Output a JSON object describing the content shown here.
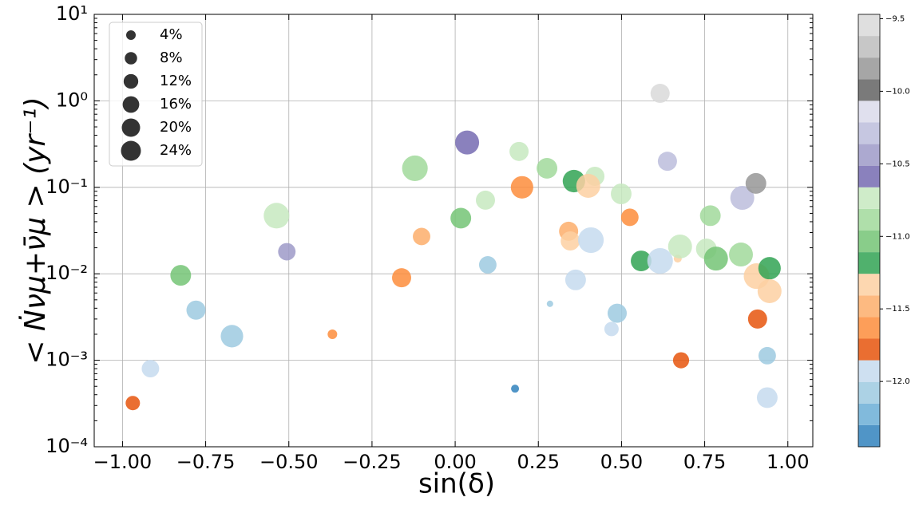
{
  "chart_data": {
    "type": "scatter",
    "x_label": "sin(δ)",
    "y_label": "< Ṅνμ+ν̄μ > (yr⁻¹)",
    "xlim": [
      -1.085,
      1.075
    ],
    "ylim": [
      0.0001,
      10
    ],
    "log_y": true,
    "grid": true,
    "xticks": [
      {
        "value": -1,
        "label": "−1.00"
      },
      {
        "value": -0.75,
        "label": "−0.75"
      },
      {
        "value": -0.5,
        "label": "−0.50"
      },
      {
        "value": -0.25,
        "label": "−0.25"
      },
      {
        "value": 0,
        "label": "0.00"
      },
      {
        "value": 0.25,
        "label": "0.25"
      },
      {
        "value": 0.5,
        "label": "0.50"
      },
      {
        "value": 0.75,
        "label": "0.75"
      },
      {
        "value": 1,
        "label": "1.00"
      }
    ],
    "yticks": [
      {
        "value": 0.0001,
        "label": "10⁻⁴"
      },
      {
        "value": 0.001,
        "label": "10⁻³"
      },
      {
        "value": 0.01,
        "label": "10⁻²"
      },
      {
        "value": 0.1,
        "label": "10⁻¹"
      },
      {
        "value": 1,
        "label": "10⁰"
      },
      {
        "value": 10,
        "label": "10¹"
      }
    ],
    "x": [
      -0.969,
      -0.916,
      -0.825,
      -0.779,
      -0.671,
      -0.537,
      -0.506,
      -0.369,
      -0.161,
      -0.121,
      -0.101,
      0.017,
      0.036,
      0.091,
      0.098,
      0.18,
      0.192,
      0.201,
      0.276,
      0.285,
      0.341,
      0.346,
      0.357,
      0.362,
      0.42,
      0.4,
      0.408,
      0.47,
      0.487,
      0.499,
      0.525,
      0.559,
      0.616,
      0.616,
      0.638,
      0.669,
      0.679,
      0.676,
      0.755,
      0.767,
      0.784,
      0.859,
      0.863,
      0.904,
      0.906,
      0.909,
      0.945,
      0.945,
      0.938,
      0.938
    ],
    "y": [
      0.00032,
      0.0008,
      0.0096,
      0.0038,
      0.0019,
      0.047,
      0.018,
      0.002,
      0.009,
      0.166,
      0.027,
      0.044,
      0.33,
      0.071,
      0.0127,
      0.00047,
      0.26,
      0.1,
      0.166,
      0.0045,
      0.031,
      0.024,
      0.118,
      0.0085,
      0.134,
      0.104,
      0.0245,
      0.0023,
      0.0035,
      0.084,
      0.045,
      0.0141,
      0.0141,
      1.22,
      0.2,
      0.015,
      0.001,
      0.0207,
      0.0194,
      0.047,
      0.015,
      0.0167,
      0.0755,
      0.111,
      0.0094,
      0.003,
      0.0116,
      0.0063,
      0.00113,
      0.00037
    ],
    "sizes": [
      11.5,
      18,
      26,
      22,
      31,
      41,
      18,
      4,
      22,
      41,
      18,
      26,
      35.5,
      22,
      18,
      2.2,
      22,
      31,
      26,
      0.7,
      22,
      22,
      31,
      26,
      22,
      35.5,
      41,
      11.5,
      22,
      26,
      18,
      26,
      41,
      22,
      22,
      2.2,
      15,
      35.5,
      26,
      26,
      35.5,
      35.5,
      35.5,
      26,
      41,
      22,
      31,
      35.5,
      18,
      26
    ],
    "c": [
      -11.78,
      -11.93,
      -11.03,
      -12.08,
      -12.08,
      -10.74,
      -10.44,
      -11.63,
      -11.63,
      -10.88,
      -11.48,
      -11.03,
      -10.59,
      -10.74,
      -12.08,
      -12.38,
      -10.74,
      -11.63,
      -10.88,
      -12.08,
      -11.48,
      -11.33,
      -11.18,
      -11.93,
      -10.74,
      -11.33,
      -11.93,
      -11.93,
      -12.08,
      -10.74,
      -11.63,
      -11.18,
      -11.93,
      -9.54,
      -10.29,
      -11.33,
      -11.78,
      -10.74,
      -10.74,
      -10.88,
      -11.03,
      -10.88,
      -10.29,
      -9.84,
      -11.33,
      -11.78,
      -11.18,
      -11.33,
      -12.08,
      -11.93
    ],
    "size_legend": [
      {
        "value": 4,
        "label": "4%"
      },
      {
        "value": 8,
        "label": "8%"
      },
      {
        "value": 12,
        "label": "12%"
      },
      {
        "value": 16,
        "label": "16%"
      },
      {
        "value": 20,
        "label": "20%"
      },
      {
        "value": 24,
        "label": "24%"
      }
    ],
    "legend_position": "upper left",
    "colorbar": {
      "lim": [
        -12.45,
        -9.47
      ],
      "ticks": [
        {
          "value": -12,
          "label": "−12.0"
        },
        {
          "value": -11.5,
          "label": "−11.5"
        },
        {
          "value": -11,
          "label": "−11.0"
        },
        {
          "value": -10.5,
          "label": "−10.5"
        },
        {
          "value": -10,
          "label": "−10.0"
        },
        {
          "value": -9.5,
          "label": "−9.5"
        }
      ],
      "colors": [
        "#3182bd",
        "#6baed6",
        "#9ecae1",
        "#c6dbef",
        "#e6550d",
        "#fd8d3c",
        "#fdae6b",
        "#fdd0a2",
        "#31a354",
        "#74c476",
        "#a1d99b",
        "#c7e9c0",
        "#756bb1",
        "#9e9ac8",
        "#bcbddc",
        "#dadaeb",
        "#636363",
        "#969696",
        "#bdbdbd",
        "#d9d9d9"
      ]
    }
  }
}
